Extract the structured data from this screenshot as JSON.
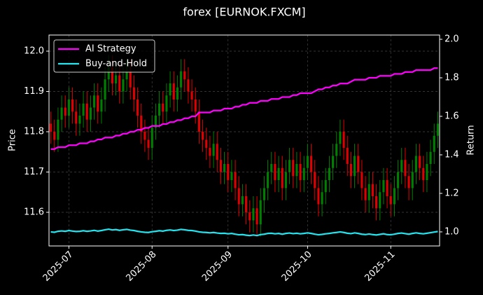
{
  "chart_data": {
    "type": "candlestick",
    "title": "forex [EURNOK.FXCM]",
    "ylabel": "Price",
    "y2label": "Return",
    "open": [
      11.82,
      11.8,
      11.78,
      11.83,
      11.86,
      11.84,
      11.88,
      11.85,
      11.82,
      11.84,
      11.87,
      11.83,
      11.86,
      11.89,
      11.85,
      11.88,
      11.93,
      11.96,
      11.92,
      11.94,
      11.9,
      11.93,
      11.95,
      11.91,
      11.88,
      11.84,
      11.8,
      11.78,
      11.76,
      11.81,
      11.84,
      11.87,
      11.85,
      11.89,
      11.92,
      11.88,
      11.91,
      11.95,
      11.93,
      11.9,
      11.88,
      11.85,
      11.8,
      11.78,
      11.76,
      11.74,
      11.77,
      11.73,
      11.7,
      11.72,
      11.68,
      11.7,
      11.66,
      11.62,
      11.64,
      11.6,
      11.58,
      11.61,
      11.57,
      11.63,
      11.66,
      11.7,
      11.72,
      11.68,
      11.71,
      11.66,
      11.7,
      11.73,
      11.69,
      11.72,
      11.68,
      11.71,
      11.74,
      11.7,
      11.66,
      11.62,
      11.65,
      11.68,
      11.71,
      11.74,
      11.77,
      11.8,
      11.76,
      11.72,
      11.69,
      11.74,
      11.7,
      11.66,
      11.63,
      11.67,
      11.64,
      11.61,
      11.65,
      11.68,
      11.64,
      11.62,
      11.66,
      11.7,
      11.73,
      11.69,
      11.66,
      11.7,
      11.74,
      11.71,
      11.68,
      11.72,
      11.75,
      11.79
    ],
    "high": [
      11.85,
      11.83,
      11.86,
      11.89,
      11.89,
      11.91,
      11.91,
      11.88,
      11.87,
      11.9,
      11.9,
      11.89,
      11.92,
      11.92,
      11.91,
      11.96,
      11.99,
      11.99,
      11.97,
      11.97,
      11.96,
      11.98,
      11.98,
      11.94,
      11.91,
      11.87,
      11.83,
      11.81,
      11.84,
      11.87,
      11.9,
      11.9,
      11.92,
      11.95,
      11.95,
      11.94,
      11.98,
      11.98,
      11.96,
      11.93,
      11.91,
      11.88,
      11.83,
      11.81,
      11.79,
      11.8,
      11.8,
      11.76,
      11.75,
      11.75,
      11.73,
      11.73,
      11.69,
      11.67,
      11.67,
      11.63,
      11.64,
      11.64,
      11.66,
      11.69,
      11.73,
      11.75,
      11.75,
      11.74,
      11.74,
      11.73,
      11.76,
      11.76,
      11.75,
      11.75,
      11.74,
      11.77,
      11.77,
      11.73,
      11.69,
      11.68,
      11.71,
      11.74,
      11.77,
      11.8,
      11.83,
      11.83,
      11.79,
      11.75,
      11.77,
      11.77,
      11.73,
      11.69,
      11.7,
      11.7,
      11.67,
      11.68,
      11.71,
      11.71,
      11.67,
      11.69,
      11.73,
      11.76,
      11.76,
      11.72,
      11.73,
      11.77,
      11.77,
      11.74,
      11.75,
      11.78,
      11.82,
      11.85
    ],
    "low": [
      11.77,
      11.75,
      11.75,
      11.8,
      11.81,
      11.81,
      11.82,
      11.79,
      11.79,
      11.81,
      11.8,
      11.8,
      11.83,
      11.82,
      11.82,
      11.85,
      11.9,
      11.89,
      11.89,
      11.87,
      11.87,
      11.9,
      11.88,
      11.85,
      11.81,
      11.77,
      11.75,
      11.73,
      11.73,
      11.78,
      11.81,
      11.82,
      11.82,
      11.86,
      11.85,
      11.85,
      11.88,
      11.9,
      11.87,
      11.85,
      11.82,
      11.77,
      11.75,
      11.73,
      11.71,
      11.71,
      11.7,
      11.67,
      11.67,
      11.65,
      11.65,
      11.63,
      11.59,
      11.59,
      11.57,
      11.55,
      11.55,
      11.54,
      11.54,
      11.6,
      11.63,
      11.67,
      11.65,
      11.65,
      11.63,
      11.63,
      11.67,
      11.66,
      11.66,
      11.65,
      11.65,
      11.68,
      11.67,
      11.63,
      11.59,
      11.59,
      11.62,
      11.65,
      11.68,
      11.71,
      11.74,
      11.73,
      11.69,
      11.66,
      11.66,
      11.67,
      11.63,
      11.6,
      11.6,
      11.61,
      11.58,
      11.58,
      11.62,
      11.61,
      11.59,
      11.59,
      11.63,
      11.67,
      11.66,
      11.63,
      11.63,
      11.67,
      11.68,
      11.65,
      11.65,
      11.69,
      11.72,
      11.76
    ],
    "close": [
      11.8,
      11.78,
      11.83,
      11.86,
      11.84,
      11.88,
      11.85,
      11.82,
      11.84,
      11.87,
      11.83,
      11.86,
      11.89,
      11.85,
      11.88,
      11.93,
      11.96,
      11.92,
      11.94,
      11.9,
      11.93,
      11.95,
      11.91,
      11.88,
      11.84,
      11.8,
      11.78,
      11.76,
      11.81,
      11.84,
      11.87,
      11.85,
      11.89,
      11.92,
      11.88,
      11.91,
      11.95,
      11.93,
      11.9,
      11.88,
      11.85,
      11.8,
      11.78,
      11.76,
      11.74,
      11.77,
      11.73,
      11.7,
      11.72,
      11.68,
      11.7,
      11.66,
      11.62,
      11.64,
      11.6,
      11.58,
      11.61,
      11.57,
      11.63,
      11.66,
      11.7,
      11.72,
      11.68,
      11.71,
      11.66,
      11.7,
      11.73,
      11.69,
      11.72,
      11.68,
      11.71,
      11.74,
      11.7,
      11.66,
      11.62,
      11.65,
      11.68,
      11.71,
      11.74,
      11.77,
      11.8,
      11.76,
      11.72,
      11.69,
      11.74,
      11.7,
      11.66,
      11.63,
      11.67,
      11.64,
      11.61,
      11.65,
      11.68,
      11.64,
      11.62,
      11.66,
      11.7,
      11.73,
      11.69,
      11.66,
      11.7,
      11.74,
      11.71,
      11.68,
      11.72,
      11.75,
      11.79,
      11.82
    ],
    "up_color": "#008000",
    "down_color": "#e00000",
    "series": [
      {
        "name": "AI Strategy",
        "color": "#ff00ff",
        "axis": "y2",
        "values": [
          1.43,
          1.43,
          1.44,
          1.44,
          1.44,
          1.45,
          1.45,
          1.45,
          1.46,
          1.46,
          1.46,
          1.47,
          1.47,
          1.48,
          1.48,
          1.49,
          1.49,
          1.49,
          1.5,
          1.5,
          1.51,
          1.51,
          1.52,
          1.52,
          1.53,
          1.53,
          1.54,
          1.54,
          1.55,
          1.55,
          1.55,
          1.56,
          1.56,
          1.57,
          1.57,
          1.58,
          1.58,
          1.59,
          1.59,
          1.6,
          1.6,
          1.62,
          1.62,
          1.62,
          1.62,
          1.63,
          1.63,
          1.63,
          1.64,
          1.64,
          1.64,
          1.65,
          1.65,
          1.66,
          1.66,
          1.67,
          1.67,
          1.67,
          1.68,
          1.68,
          1.68,
          1.69,
          1.69,
          1.69,
          1.7,
          1.7,
          1.7,
          1.71,
          1.71,
          1.72,
          1.72,
          1.72,
          1.72,
          1.73,
          1.74,
          1.74,
          1.75,
          1.75,
          1.76,
          1.76,
          1.77,
          1.77,
          1.77,
          1.78,
          1.79,
          1.79,
          1.79,
          1.79,
          1.8,
          1.8,
          1.8,
          1.81,
          1.81,
          1.81,
          1.81,
          1.82,
          1.82,
          1.82,
          1.83,
          1.83,
          1.83,
          1.84,
          1.84,
          1.84,
          1.84,
          1.84,
          1.85,
          1.85
        ]
      },
      {
        "name": "Buy-and-Hold",
        "color": "#22e5f0",
        "axis": "y2",
        "values": [
          1.0,
          0.998,
          1.003,
          1.005,
          1.003,
          1.007,
          1.004,
          1.002,
          1.003,
          1.006,
          1.003,
          1.005,
          1.008,
          1.004,
          1.007,
          1.011,
          1.014,
          1.01,
          1.012,
          1.008,
          1.011,
          1.013,
          1.009,
          1.007,
          1.003,
          1.0,
          0.998,
          0.997,
          1.001,
          1.003,
          1.006,
          1.004,
          1.008,
          1.01,
          1.007,
          1.009,
          1.013,
          1.011,
          1.008,
          1.007,
          1.004,
          1.0,
          0.998,
          0.997,
          0.995,
          0.997,
          0.994,
          0.992,
          0.993,
          0.99,
          0.992,
          0.988,
          0.985,
          0.986,
          0.983,
          0.981,
          0.984,
          0.981,
          0.986,
          0.988,
          0.992,
          0.993,
          0.99,
          0.992,
          0.988,
          0.992,
          0.994,
          0.991,
          0.993,
          0.99,
          0.992,
          0.995,
          0.992,
          0.988,
          0.985,
          0.987,
          0.99,
          0.992,
          0.995,
          0.997,
          1.0,
          0.997,
          0.993,
          0.991,
          0.995,
          0.992,
          0.988,
          0.986,
          0.989,
          0.986,
          0.984,
          0.987,
          0.99,
          0.986,
          0.985,
          0.988,
          0.992,
          0.994,
          0.991,
          0.988,
          0.992,
          0.995,
          0.992,
          0.99,
          0.993,
          0.996,
          0.999,
          1.002
        ]
      }
    ],
    "xlim": [
      -0.5,
      107.5
    ],
    "xticks": [
      {
        "value": 5,
        "label": "2025-07"
      },
      {
        "value": 28,
        "label": "2025-08"
      },
      {
        "value": 49,
        "label": "2025-09"
      },
      {
        "value": 71,
        "label": "2025-10"
      },
      {
        "value": 94,
        "label": "2025-11"
      }
    ],
    "ylim": [
      11.5165,
      12.04
    ],
    "yticks": [
      11.6,
      11.7,
      11.8,
      11.9,
      {
        "value": 12,
        "label": "12.0"
      }
    ],
    "y2lim": [
      0.927,
      2.022
    ],
    "y2ticks": [
      {
        "value": 1,
        "label": "1.0"
      },
      1.2,
      1.4,
      1.6,
      1.8,
      {
        "value": 2,
        "label": "2.0"
      }
    ],
    "grid": true,
    "legend": "upper left"
  }
}
